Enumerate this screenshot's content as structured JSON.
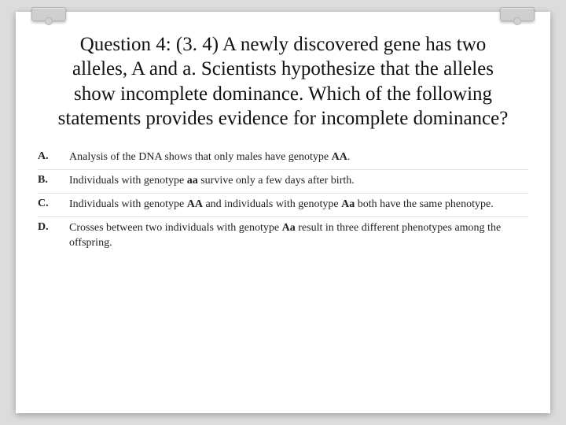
{
  "question": {
    "prefix": "Question 4: (3. 4)",
    "body": "A newly discovered gene has two alleles, A and a. Scientists hypothesize that the alleles show incomplete dominance. Which of the following statements provides evidence for incomplete dominance?"
  },
  "answers": [
    {
      "letter": "A.",
      "html": "Analysis of the DNA shows that only males have genotype <b>AA</b>."
    },
    {
      "letter": "B.",
      "html": "Individuals with genotype <b>aa</b> survive only a few days after birth."
    },
    {
      "letter": "C.",
      "html": "Individuals with genotype <b>AA</b> and individuals with genotype <b>Aa</b> both have the same phenotype."
    },
    {
      "letter": "D.",
      "html": "Crosses between two individuals with genotype <b>Aa</b> result in three different phenotypes among the offspring."
    }
  ],
  "colors": {
    "page_bg": "#dcdcdc",
    "card_bg": "#ffffff",
    "text": "#111111",
    "divider": "#e2e2e2"
  }
}
